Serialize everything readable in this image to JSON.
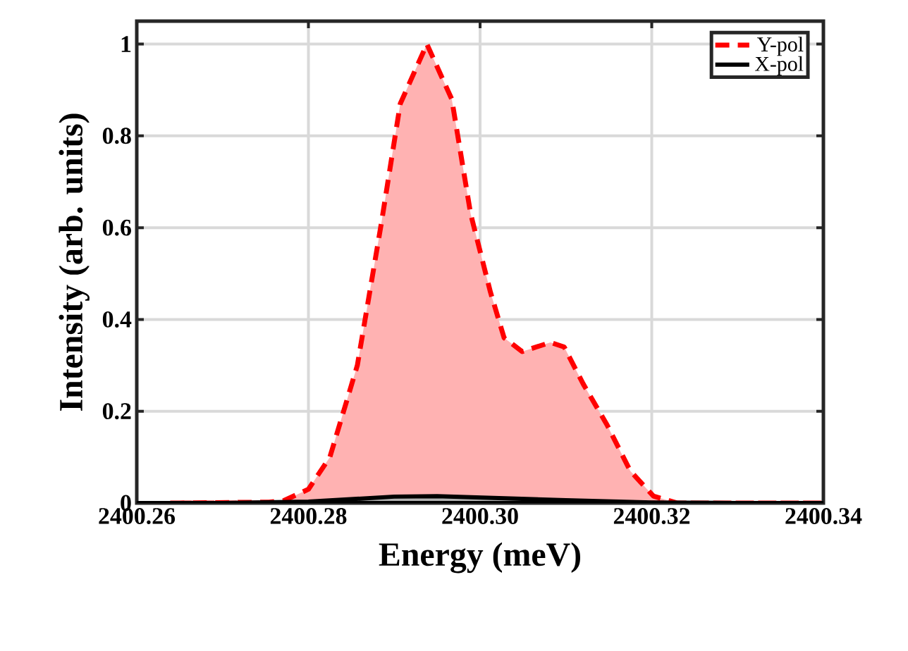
{
  "chart_data": {
    "type": "area",
    "xlabel": "Energy (meV)",
    "ylabel": "Intensity (arb. units)",
    "xlim": [
      2400.26,
      2400.34
    ],
    "ylim": [
      0,
      1.05
    ],
    "xticks": [
      {
        "value": 2400.26,
        "label": "2400.26"
      },
      {
        "value": 2400.28,
        "label": "2400.28"
      },
      {
        "value": 2400.3,
        "label": "2400.30"
      },
      {
        "value": 2400.32,
        "label": "2400.32"
      },
      {
        "value": 2400.34,
        "label": "2400.34"
      }
    ],
    "yticks": [
      0,
      0.2,
      0.4,
      0.6,
      0.8,
      1
    ],
    "grid": true,
    "legend": "top right",
    "series": [
      {
        "name": "Y-pol",
        "color": "#ff0000",
        "line_style": "dashed",
        "x": [
          2400.2639,
          2400.2754,
          2400.2771,
          2400.28,
          2400.2825,
          2400.2857,
          2400.2885,
          2400.2907,
          2400.2938,
          2400.2967,
          2400.2989,
          2400.3012,
          2400.3028,
          2400.3049,
          2400.3082,
          2400.3098,
          2400.312,
          2400.3148,
          2400.3175,
          2400.3202,
          2400.323,
          2400.34
        ],
        "values": [
          0,
          0.002,
          0.005,
          0.03,
          0.1,
          0.3,
          0.61,
          0.87,
          1.0,
          0.88,
          0.63,
          0.46,
          0.36,
          0.33,
          0.35,
          0.34,
          0.26,
          0.17,
          0.07,
          0.015,
          0,
          0
        ]
      },
      {
        "name": "X-pol",
        "color": "#000000",
        "line_style": "solid",
        "x": [
          2400.26,
          2400.27,
          2400.28,
          2400.29,
          2400.295,
          2400.3,
          2400.31,
          2400.32,
          2400.33,
          2400.34
        ],
        "values": [
          0,
          0,
          0.003,
          0.014,
          0.015,
          0.012,
          0.006,
          0.001,
          0,
          0
        ]
      }
    ]
  }
}
